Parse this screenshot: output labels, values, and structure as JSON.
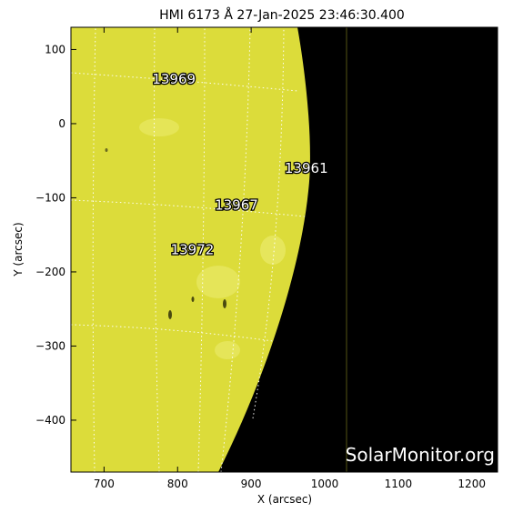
{
  "chart_data": {
    "type": "image",
    "title": "HMI 6173 Å 27-Jan-2025 23:46:30.400",
    "xlabel": "X (arcsec)",
    "ylabel": "Y (arcsec)",
    "xlim": [
      655,
      1235
    ],
    "ylim": [
      -470,
      130
    ],
    "xticks": [
      700,
      800,
      900,
      1000,
      1100,
      1200
    ],
    "yticks": [
      100,
      0,
      -100,
      -200,
      -300,
      -400
    ],
    "xtick_labels": [
      "700",
      "800",
      "900",
      "1000",
      "1100",
      "1200"
    ],
    "ytick_labels": [
      "100",
      "0",
      "−100",
      "−200",
      "−300",
      "−400"
    ],
    "active_regions": [
      {
        "label": "13969",
        "x": 795,
        "y": 60
      },
      {
        "label": "13961",
        "x": 975,
        "y": -60
      },
      {
        "label": "13967",
        "x": 880,
        "y": -110
      },
      {
        "label": "13972",
        "x": 820,
        "y": -170
      }
    ],
    "watermark": "SolarMonitor.org",
    "colors": {
      "disk": "#dcdc3a",
      "background": "#000000",
      "grid": "#ffffff",
      "label": "#ffffff"
    }
  }
}
